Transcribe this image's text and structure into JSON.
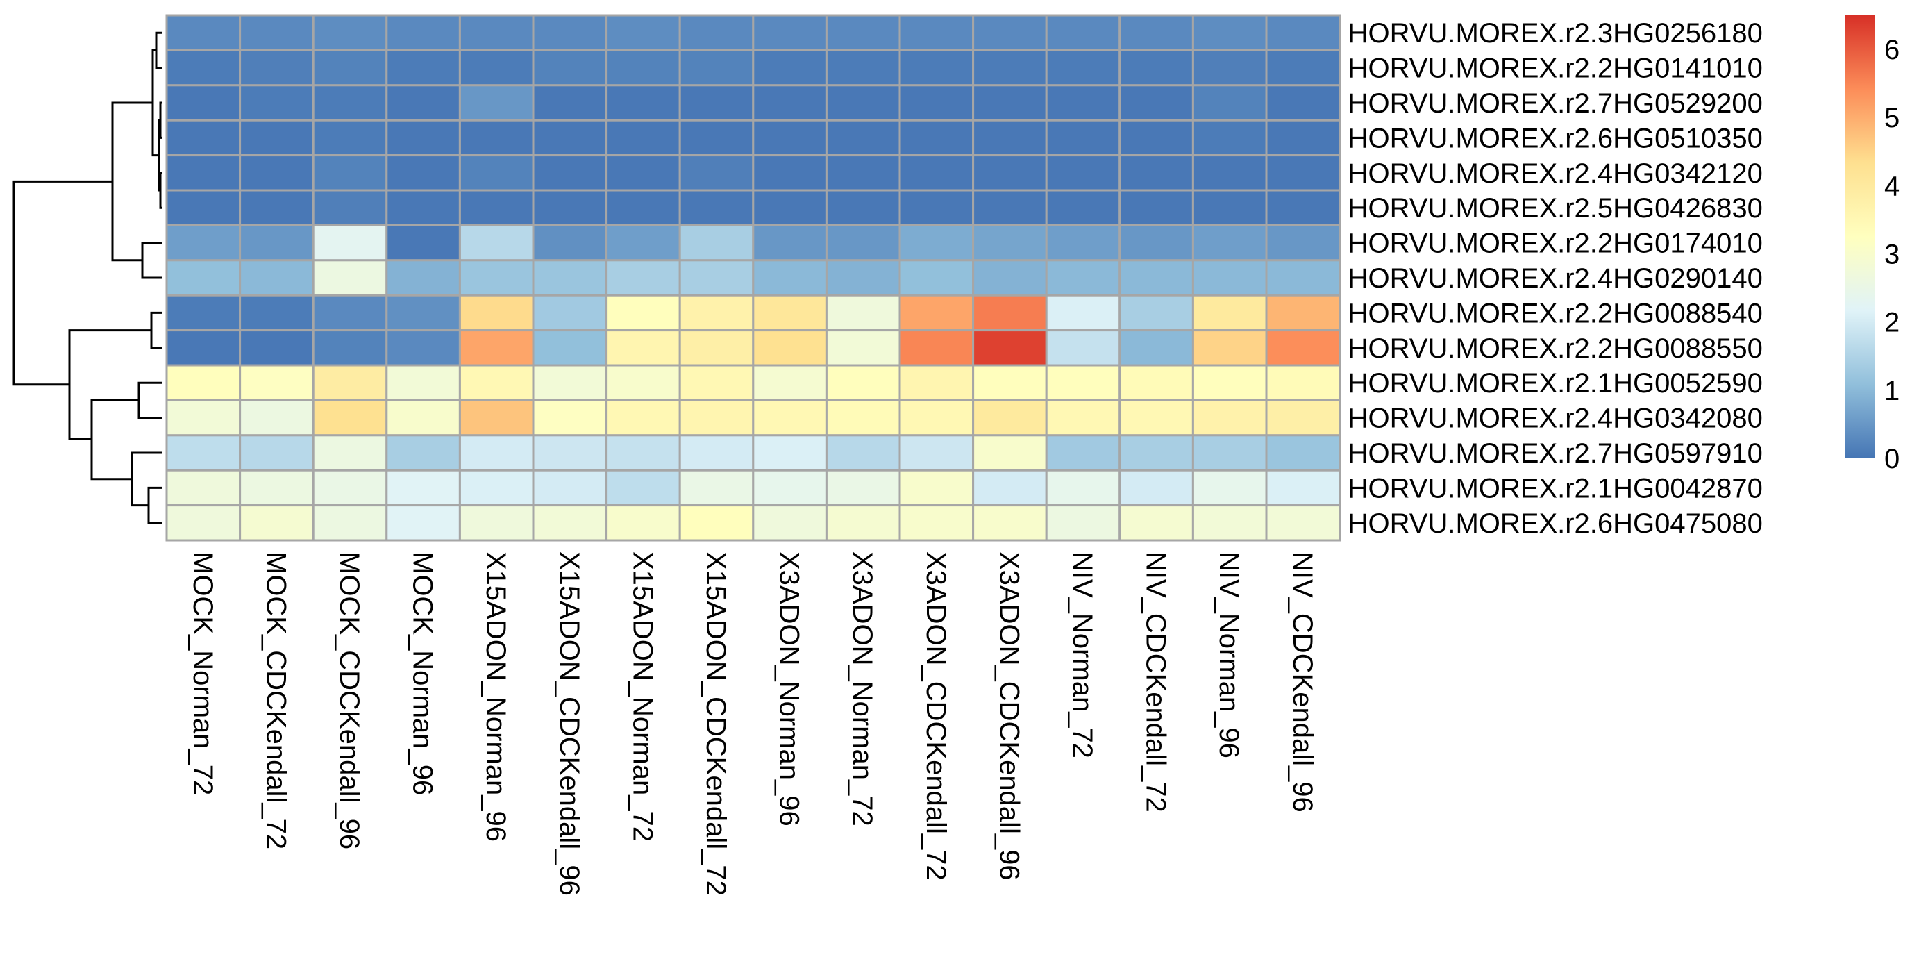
{
  "chart_data": {
    "type": "heatmap",
    "title": "",
    "columns": [
      "MOCK_Norman_72",
      "MOCK_CDCKendall_72",
      "MOCK_CDCKendall_96",
      "MOCK_Norman_96",
      "X15ADON_Norman_96",
      "X15ADON_CDCKendall_96",
      "X15ADON_Norman_72",
      "X15ADON_CDCKendall_72",
      "X3ADON_Norman_96",
      "X3ADON_Norman_72",
      "X3ADON_CDCKendall_72",
      "X3ADON_CDCKendall_96",
      "NIV_Norman_72",
      "NIV_CDCKendall_72",
      "NIV_Norman_96",
      "NIV_CDCKendall_96"
    ],
    "rows": [
      "HORVU.MOREX.r2.3HG0256180",
      "HORVU.MOREX.r2.2HG0141010",
      "HORVU.MOREX.r2.7HG0529200",
      "HORVU.MOREX.r2.6HG0510350",
      "HORVU.MOREX.r2.4HG0342120",
      "HORVU.MOREX.r2.5HG0426830",
      "HORVU.MOREX.r2.2HG0174010",
      "HORVU.MOREX.r2.4HG0290140",
      "HORVU.MOREX.r2.2HG0088540",
      "HORVU.MOREX.r2.2HG0088550",
      "HORVU.MOREX.r2.1HG0052590",
      "HORVU.MOREX.r2.4HG0342080",
      "HORVU.MOREX.r2.7HG0597910",
      "HORVU.MOREX.r2.1HG0042870",
      "HORVU.MOREX.r2.6HG0475080"
    ],
    "values": [
      [
        0.3,
        0.3,
        0.35,
        0.3,
        0.3,
        0.3,
        0.35,
        0.3,
        0.3,
        0.3,
        0.3,
        0.3,
        0.3,
        0.3,
        0.35,
        0.3
      ],
      [
        0.1,
        0.15,
        0.2,
        0.1,
        0.1,
        0.2,
        0.2,
        0.2,
        0.1,
        0.1,
        0.1,
        0.1,
        0.1,
        0.1,
        0.15,
        0.1
      ],
      [
        0.05,
        0.1,
        0.1,
        0.05,
        0.5,
        0.05,
        0.05,
        0.05,
        0.05,
        0.05,
        0.05,
        0.05,
        0.05,
        0.05,
        0.2,
        0.05
      ],
      [
        0.05,
        0.05,
        0.1,
        0.05,
        0.05,
        0.05,
        0.05,
        0.05,
        0.05,
        0.05,
        0.05,
        0.05,
        0.05,
        0.05,
        0.1,
        0.05
      ],
      [
        0.05,
        0.05,
        0.2,
        0.05,
        0.2,
        0.05,
        0.05,
        0.15,
        0.05,
        0.05,
        0.05,
        0.05,
        0.05,
        0.05,
        0.05,
        0.05
      ],
      [
        0.05,
        0.05,
        0.15,
        0.05,
        0.05,
        0.05,
        0.05,
        0.05,
        0.05,
        0.05,
        0.05,
        0.05,
        0.05,
        0.05,
        0.05,
        0.05
      ],
      [
        0.6,
        0.5,
        2.3,
        0.05,
        1.6,
        0.4,
        0.6,
        1.4,
        0.5,
        0.5,
        0.8,
        0.7,
        0.6,
        0.5,
        0.6,
        0.5
      ],
      [
        1.1,
        1.0,
        2.6,
        0.9,
        1.2,
        1.2,
        1.4,
        1.4,
        1.0,
        0.9,
        1.1,
        0.9,
        1.0,
        1.0,
        1.0,
        1.0
      ],
      [
        0.1,
        0.1,
        0.3,
        0.4,
        4.4,
        1.3,
        3.3,
        3.7,
        4.1,
        2.7,
        5.1,
        5.6,
        2.1,
        1.4,
        4.0,
        4.9
      ],
      [
        0.05,
        0.05,
        0.2,
        0.3,
        5.1,
        1.1,
        3.6,
        3.8,
        4.3,
        2.8,
        5.5,
        6.3,
        1.8,
        1.0,
        4.5,
        5.4
      ],
      [
        3.3,
        3.2,
        3.9,
        2.8,
        3.5,
        2.8,
        3.0,
        3.5,
        2.9,
        3.3,
        3.6,
        3.3,
        3.3,
        3.4,
        3.3,
        3.4
      ],
      [
        2.8,
        2.6,
        4.3,
        3.0,
        4.7,
        3.2,
        3.5,
        3.6,
        3.5,
        3.4,
        3.5,
        4.0,
        3.5,
        3.5,
        3.7,
        3.8
      ],
      [
        1.7,
        1.6,
        2.6,
        1.4,
        2.0,
        1.9,
        1.8,
        2.0,
        2.1,
        1.6,
        1.9,
        3.0,
        1.3,
        1.4,
        1.4,
        1.2
      ],
      [
        2.7,
        2.6,
        2.5,
        2.2,
        2.1,
        2.0,
        1.7,
        2.5,
        2.4,
        2.5,
        3.0,
        2.0,
        2.4,
        2.0,
        2.4,
        2.1
      ],
      [
        2.7,
        2.9,
        2.6,
        2.2,
        2.7,
        2.8,
        3.0,
        3.3,
        2.7,
        2.9,
        3.0,
        3.0,
        2.6,
        2.9,
        2.8,
        2.8
      ]
    ],
    "colorbar": {
      "ticks": [
        "0",
        "1",
        "2",
        "3",
        "4",
        "5",
        "6"
      ],
      "range": [
        0,
        6.5
      ],
      "colors": [
        "#4575b4",
        "#91bfdb",
        "#e0f3f8",
        "#ffffbf",
        "#fee090",
        "#fc8d59",
        "#d73027"
      ]
    },
    "row_dendrogram": true,
    "legend_placement": "right"
  }
}
